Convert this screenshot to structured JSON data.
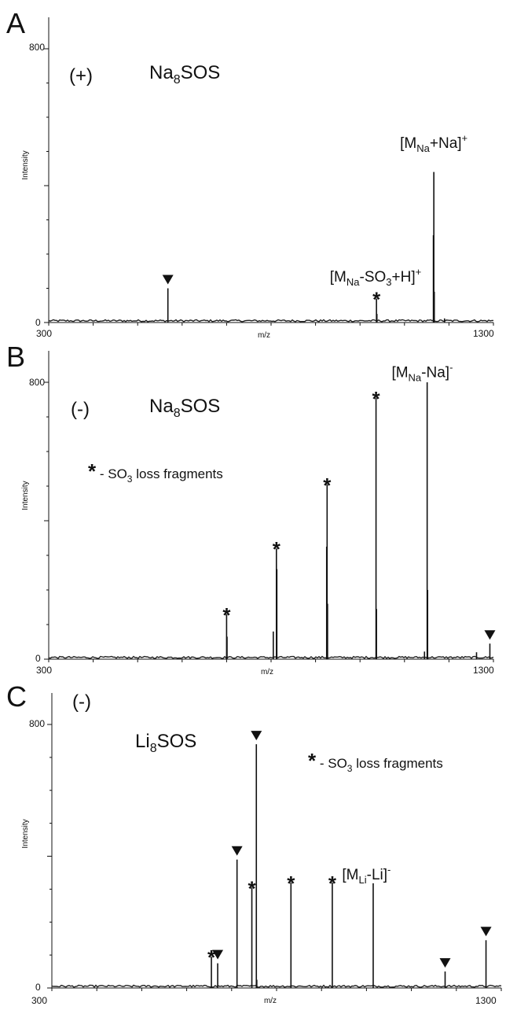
{
  "chart_data": [
    {
      "type": "line",
      "panel": "A",
      "polarity": "(+)",
      "compound": {
        "base": "Na",
        "sub": "8",
        "tail": "SOS"
      },
      "xlabel": "m/z",
      "ylabel": "Intensity",
      "xlim": [
        300,
        1300
      ],
      "ylim": [
        0,
        800
      ],
      "x_ticks": [
        "300",
        "1300"
      ],
      "y_ticks": [
        "0",
        "800"
      ],
      "peaks": [
        {
          "x": 568,
          "y": 100,
          "marker": "triangle"
        },
        {
          "x": 1037,
          "y": 70,
          "marker": "star"
        },
        {
          "x": 1038,
          "y": 25
        },
        {
          "x": 1165,
          "y": 255
        },
        {
          "x": 1166,
          "y": 440
        },
        {
          "x": 1167,
          "y": 90
        },
        {
          "x": 1190,
          "y": 12
        }
      ],
      "annotations": [
        {
          "x": 1035,
          "y": 120,
          "parts": [
            [
              "[M",
              "n"
            ],
            [
              "Na",
              "sub"
            ],
            [
              "-SO",
              "n"
            ],
            [
              "3",
              "sub"
            ],
            [
              "+H]",
              "n"
            ],
            [
              "+",
              "sup"
            ]
          ]
        },
        {
          "x": 1166,
          "y": 510,
          "parts": [
            [
              "[M",
              "n"
            ],
            [
              "Na",
              "sub"
            ],
            [
              "+Na]",
              "n"
            ],
            [
              "+",
              "sup"
            ]
          ]
        }
      ]
    },
    {
      "type": "line",
      "panel": "B",
      "polarity": "(-)",
      "compound": {
        "base": "Na",
        "sub": "8",
        "tail": "SOS"
      },
      "legend": {
        "symbol": "*",
        "prefix": " - SO",
        "sub": "3",
        "suffix": " loss fragments"
      },
      "xlabel": "m/z",
      "ylabel": "Intensity",
      "xlim": [
        300,
        1300
      ],
      "ylim": [
        0,
        800
      ],
      "x_ticks": [
        "300",
        "1300"
      ],
      "y_ticks": [
        "0",
        "800"
      ],
      "peaks": [
        {
          "x": 700,
          "y": 130,
          "marker": "star"
        },
        {
          "x": 701,
          "y": 65
        },
        {
          "x": 805,
          "y": 80
        },
        {
          "x": 812,
          "y": 320,
          "marker": "star"
        },
        {
          "x": 813,
          "y": 260
        },
        {
          "x": 925,
          "y": 325
        },
        {
          "x": 926,
          "y": 505,
          "marker": "star"
        },
        {
          "x": 927,
          "y": 160
        },
        {
          "x": 1036,
          "y": 755,
          "marker": "star"
        },
        {
          "x": 1037,
          "y": 145
        },
        {
          "x": 1145,
          "y": 22
        },
        {
          "x": 1151,
          "y": 800
        },
        {
          "x": 1152,
          "y": 200
        },
        {
          "x": 1262,
          "y": 20
        },
        {
          "x": 1292,
          "y": 45,
          "marker": "triangle"
        }
      ],
      "annotations": [
        {
          "x": 1140,
          "y": 815,
          "parts": [
            [
              "[M",
              "n"
            ],
            [
              "Na",
              "sub"
            ],
            [
              "-Na]",
              "n"
            ],
            [
              "-",
              "sup"
            ]
          ]
        }
      ]
    },
    {
      "type": "line",
      "panel": "C",
      "polarity": "(-)",
      "compound": {
        "base": "Li",
        "sub": "8",
        "tail": "SOS"
      },
      "legend": {
        "symbol": "*",
        "prefix": " - SO",
        "sub": "3",
        "suffix": " loss fragments"
      },
      "xlabel": "m/z",
      "ylabel": "Intensity",
      "xlim": [
        300,
        1300
      ],
      "ylim": [
        0,
        800
      ],
      "x_ticks": [
        "300",
        "1300"
      ],
      "y_ticks": [
        "0",
        "800"
      ],
      "peaks": [
        {
          "x": 655,
          "y": 95,
          "marker": "star"
        },
        {
          "x": 669,
          "y": 75,
          "marker": "triangle"
        },
        {
          "x": 712,
          "y": 390,
          "marker": "triangle"
        },
        {
          "x": 745,
          "y": 305,
          "marker": "star"
        },
        {
          "x": 755,
          "y": 740,
          "marker": "triangle"
        },
        {
          "x": 756,
          "y": 25
        },
        {
          "x": 832,
          "y": 320,
          "marker": "star"
        },
        {
          "x": 924,
          "y": 320,
          "marker": "star"
        },
        {
          "x": 1015,
          "y": 318
        },
        {
          "x": 1175,
          "y": 50,
          "marker": "triangle"
        },
        {
          "x": 1266,
          "y": 145,
          "marker": "triangle"
        }
      ],
      "annotations": [
        {
          "x": 1000,
          "y": 330,
          "parts": [
            [
              "[M",
              "n"
            ],
            [
              "Li",
              "sub"
            ],
            [
              "-Li]",
              "n"
            ],
            [
              "-",
              "sup"
            ]
          ]
        }
      ]
    }
  ]
}
